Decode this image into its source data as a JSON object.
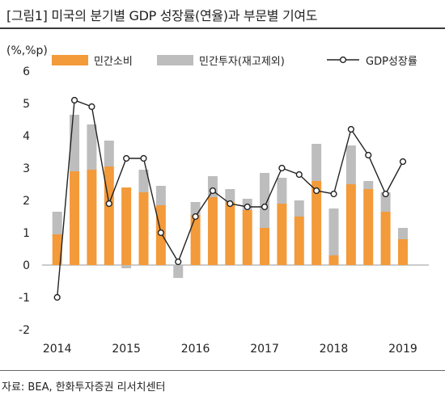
{
  "title": "[그림1]   미국의 분기별 GDP 성장률(연율)과 부문별 기여도",
  "source": "자료: BEA, 한화투자증권 리서치센터",
  "chart_data": {
    "type": "bar",
    "stacked": true,
    "ylabel": "(%,%p)",
    "ylim": [
      -2,
      6
    ],
    "yticks": [
      -2,
      -1,
      0,
      1,
      2,
      3,
      4,
      5,
      6
    ],
    "xtick_labels": [
      "2014",
      "2015",
      "2016",
      "2017",
      "2018",
      "2019"
    ],
    "grid": false,
    "legend_position": "top",
    "x": [
      "2014Q1",
      "2014Q2",
      "2014Q3",
      "2014Q4",
      "2015Q1",
      "2015Q2",
      "2015Q3",
      "2015Q4",
      "2016Q1",
      "2016Q2",
      "2016Q3",
      "2016Q4",
      "2017Q1",
      "2017Q2",
      "2017Q3",
      "2017Q4",
      "2018Q1",
      "2018Q2",
      "2018Q3",
      "2018Q4",
      "2019Q1",
      "2019Q2"
    ],
    "series": [
      {
        "name": "민간소비",
        "type": "bar",
        "color": "#f39a3a",
        "values": [
          0.95,
          2.9,
          2.95,
          3.05,
          2.4,
          2.25,
          1.85,
          null,
          1.55,
          2.1,
          1.95,
          1.7,
          1.15,
          1.9,
          1.5,
          2.6,
          0.3,
          2.5,
          2.35,
          1.65,
          0.8,
          null
        ]
      },
      {
        "name": "민간투자(재고제외)",
        "type": "bar",
        "color": "#bdbdbd",
        "values": [
          0.7,
          1.75,
          1.4,
          0.8,
          -0.1,
          0.7,
          0.6,
          -0.4,
          0.4,
          0.65,
          0.4,
          0.35,
          1.7,
          0.8,
          0.5,
          1.15,
          1.45,
          1.2,
          0.25,
          0.6,
          0.35,
          null
        ]
      },
      {
        "name": "GDP성장률",
        "type": "line",
        "color": "#222222",
        "values": [
          -1.0,
          5.1,
          4.9,
          1.9,
          3.3,
          3.3,
          1.0,
          0.1,
          1.5,
          2.3,
          1.9,
          1.8,
          1.8,
          3.0,
          2.8,
          2.3,
          2.2,
          4.2,
          3.4,
          2.2,
          3.2,
          null
        ]
      }
    ]
  }
}
